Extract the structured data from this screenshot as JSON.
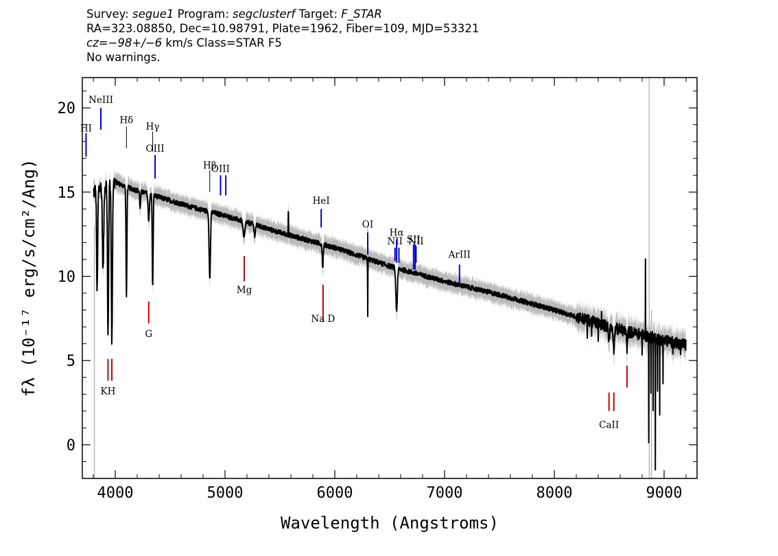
{
  "header": {
    "survey_label": "Survey:",
    "survey": "segue1",
    "program_label": "Program:",
    "program": "segclusterf",
    "target_label": "Target:",
    "target": "F_STAR",
    "line2": "RA=323.08850, Dec=10.98791, Plate=1962, Fiber=109, MJD=53321",
    "redshift_var": "cz",
    "redshift_value": "=−98+/−6",
    "redshift_unit": " km/s Class=STAR F5",
    "line4": "No warnings."
  },
  "chart_data": {
    "type": "line",
    "xlabel": "Wavelength (Angstroms)",
    "ylabel": "fλ (10⁻¹⁷ erg/s/cm²/Ang)",
    "xlim": [
      3700,
      9300
    ],
    "ylim": [
      -2,
      21.8
    ],
    "x_ticks": [
      4000,
      5000,
      6000,
      7000,
      8000,
      9000
    ],
    "y_ticks": [
      0,
      5,
      10,
      15,
      20
    ],
    "colors": {
      "flux": "#000000",
      "noise": "#b4b4b4",
      "emission": "#0000c8",
      "absorption": "#c80000",
      "balmer": "#000000"
    },
    "continuum": [
      [
        3800,
        15.0
      ],
      [
        3900,
        15.4
      ],
      [
        4000,
        15.6
      ],
      [
        4100,
        15.3
      ],
      [
        4300,
        14.9
      ],
      [
        4500,
        14.5
      ],
      [
        4700,
        14.1
      ],
      [
        5000,
        13.6
      ],
      [
        5500,
        12.6
      ],
      [
        6000,
        11.7
      ],
      [
        6500,
        10.6
      ],
      [
        7000,
        9.7
      ],
      [
        7500,
        8.9
      ],
      [
        8000,
        8.0
      ],
      [
        8500,
        7.0
      ],
      [
        9000,
        6.2
      ],
      [
        9200,
        5.9
      ]
    ],
    "absorption_features": [
      {
        "x": 3835,
        "depth": 6.0,
        "width": 5
      },
      {
        "x": 3889,
        "depth": 5.0,
        "width": 6
      },
      {
        "x": 3934,
        "depth": 9.0,
        "width": 5
      },
      {
        "x": 3969,
        "depth": 9.5,
        "width": 5
      },
      {
        "x": 4102,
        "depth": 6.5,
        "width": 4
      },
      {
        "x": 4227,
        "depth": 1.0,
        "width": 4
      },
      {
        "x": 4305,
        "depth": 1.5,
        "width": 6
      },
      {
        "x": 4341,
        "depth": 5.5,
        "width": 4
      },
      {
        "x": 4861,
        "depth": 4.0,
        "width": 6
      },
      {
        "x": 5172,
        "depth": 1.0,
        "width": 8
      },
      {
        "x": 5270,
        "depth": 0.6,
        "width": 6
      },
      {
        "x": 5890,
        "depth": 1.5,
        "width": 4
      },
      {
        "x": 6300,
        "depth": 1.5,
        "width": 2
      },
      {
        "x": 6563,
        "depth": 2.5,
        "width": 7
      },
      {
        "x": 8498,
        "depth": 0.8,
        "width": 5
      },
      {
        "x": 8542,
        "depth": 1.2,
        "width": 5
      },
      {
        "x": 8662,
        "depth": 1.0,
        "width": 5
      }
    ],
    "spikes": [
      {
        "x": 5577,
        "height": 1.5
      },
      {
        "x": 5890,
        "height": 0.4
      },
      {
        "x": 6300,
        "height": -1.8
      },
      {
        "x": 8300,
        "height": -1.2
      },
      {
        "x": 8340,
        "height": -1.0
      },
      {
        "x": 8400,
        "height": -0.8
      },
      {
        "x": 8430,
        "height": 0.9
      },
      {
        "x": 8800,
        "height": -1.5
      },
      {
        "x": 8830,
        "height": 4.8
      },
      {
        "x": 8860,
        "height": -6.5
      },
      {
        "x": 8880,
        "height": -3.5
      },
      {
        "x": 8900,
        "height": -4.0
      },
      {
        "x": 8920,
        "height": -8.0
      },
      {
        "x": 8940,
        "height": -3.0
      },
      {
        "x": 8960,
        "height": -4.5
      },
      {
        "x": 8990,
        "height": -2.5
      },
      {
        "x": 9080,
        "height": -1.0
      },
      {
        "x": 9150,
        "height": -0.8
      }
    ],
    "noise_spikes": [
      {
        "x": 3810,
        "y0": -2.0,
        "y1": 13.0
      },
      {
        "x": 6300,
        "y0": 8.3,
        "y1": 13.0
      },
      {
        "x": 8865,
        "y0": -2.0,
        "y1": 21.8
      },
      {
        "x": 8885,
        "y0": -2.0,
        "y1": 8.0
      }
    ],
    "line_markers": [
      {
        "label": "HI",
        "x": 3734,
        "y0": 17.1,
        "y1": 18.5,
        "color": "emission",
        "label_y": 18.6
      },
      {
        "label": "NeIII",
        "x": 3869,
        "y0": 18.7,
        "y1": 20.0,
        "color": "emission",
        "label_y": 20.3
      },
      {
        "label": "Hδ",
        "x": 4102,
        "y0": 17.6,
        "y1": 18.9,
        "color": "balmer",
        "label_y": 19.1
      },
      {
        "label": "Hγ",
        "x": 4341,
        "y0": 17.4,
        "y1": 18.6,
        "color": "balmer",
        "label_y": 18.7
      },
      {
        "label": "OIII",
        "x": 4363,
        "y0": 15.8,
        "y1": 17.2,
        "color": "emission",
        "label_y": 17.4
      },
      {
        "label": "Hβ",
        "x": 4861,
        "y0": 15.0,
        "y1": 16.3,
        "color": "balmer",
        "label_y": 16.4
      },
      {
        "label": "OIII",
        "x": 4959,
        "y0": 14.8,
        "y1": 16.0,
        "color": "emission",
        "label_y": 16.2
      },
      {
        "label": "",
        "x": 5007,
        "y0": 14.8,
        "y1": 16.0,
        "color": "emission",
        "label_y": 0
      },
      {
        "label": "HeI",
        "x": 5876,
        "y0": 12.9,
        "y1": 14.0,
        "color": "emission",
        "label_y": 14.3
      },
      {
        "label": "OI",
        "x": 6300,
        "y0": 11.3,
        "y1": 12.6,
        "color": "emission",
        "label_y": 12.9
      },
      {
        "label": "NII",
        "x": 6548,
        "y0": 10.9,
        "y1": 11.7,
        "color": "emission",
        "label_y": 11.9
      },
      {
        "label": "Hα",
        "x": 6563,
        "y0": 10.8,
        "y1": 12.2,
        "color": "emission",
        "label_y": 12.4
      },
      {
        "label": "",
        "x": 6584,
        "y0": 10.8,
        "y1": 11.7,
        "color": "emission",
        "label_y": 0
      },
      {
        "label": "NII",
        "x": 6740,
        "y0": 10.8,
        "y1": 11.8,
        "color": "emission",
        "label_y": 11.9
      },
      {
        "label": "SII",
        "x": 6717,
        "y0": 10.4,
        "y1": 11.9,
        "color": "emission",
        "label_y": 12.0
      },
      {
        "label": "",
        "x": 6731,
        "y0": 10.4,
        "y1": 11.9,
        "color": "emission",
        "label_y": 0
      },
      {
        "label": "ArIII",
        "x": 7136,
        "y0": 9.5,
        "y1": 10.7,
        "color": "emission",
        "label_y": 11.1
      },
      {
        "label": "G",
        "x": 4305,
        "y0": 7.2,
        "y1": 8.5,
        "color": "absorption",
        "label_y": 6.4
      },
      {
        "label": "Mg",
        "x": 5175,
        "y0": 9.7,
        "y1": 11.2,
        "color": "absorption",
        "label_y": 9.0
      },
      {
        "label": "Na D",
        "x": 5893,
        "y0": 7.3,
        "y1": 9.5,
        "color": "absorption",
        "label_y": 7.3
      },
      {
        "label": "KH",
        "x": 3934,
        "y0": 3.8,
        "y1": 5.1,
        "color": "absorption",
        "label_y": 3.0
      },
      {
        "label": "",
        "x": 3969,
        "y0": 3.8,
        "y1": 5.1,
        "color": "absorption",
        "label_y": 0
      },
      {
        "label": "CaII",
        "x": 8498,
        "y0": 2.0,
        "y1": 3.1,
        "color": "absorption",
        "label_y": 1.0
      },
      {
        "label": "",
        "x": 8542,
        "y0": 2.0,
        "y1": 3.1,
        "color": "absorption",
        "label_y": 0
      },
      {
        "label": "",
        "x": 8662,
        "y0": 3.4,
        "y1": 4.7,
        "color": "absorption",
        "label_y": 0
      }
    ]
  }
}
